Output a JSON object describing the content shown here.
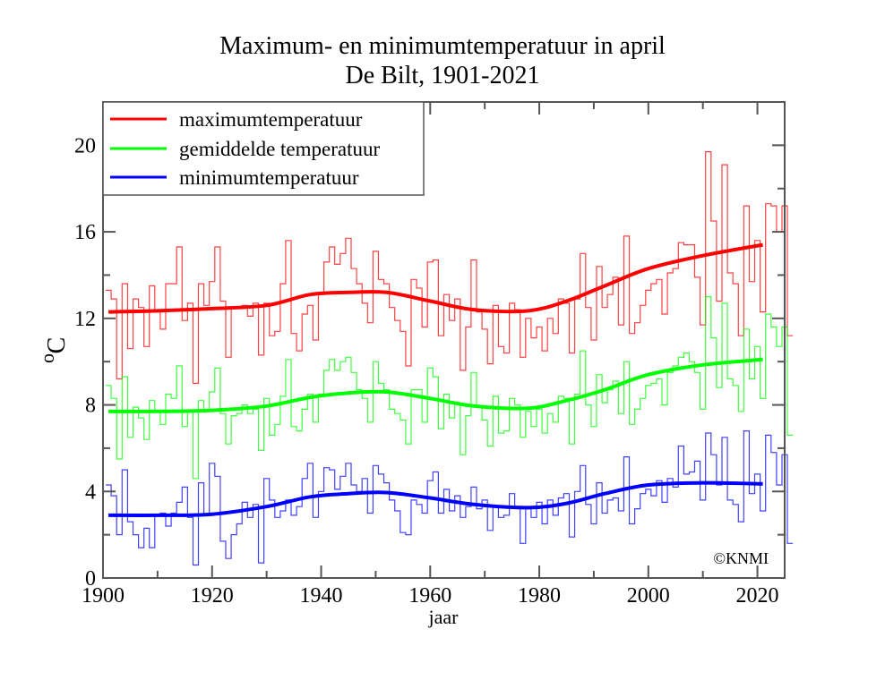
{
  "chart_data": {
    "type": "line",
    "title": "Maximum- en minimumtemperatuur in april",
    "subtitle": "De Bilt, 1901-2021",
    "xlabel": "jaar",
    "ylabel": "°C",
    "ylabel_sup": "o",
    "ylabel_main": "C",
    "xlim": [
      1900,
      2025
    ],
    "ylim": [
      0,
      22
    ],
    "x_ticks": [
      1900,
      1920,
      1940,
      1960,
      1980,
      2000,
      2020
    ],
    "x_minor_step": 10,
    "y_ticks": [
      0,
      4,
      8,
      12,
      16,
      20
    ],
    "y_minor_step": 2,
    "grid": false,
    "legend_position": "top-left",
    "credit": "©KNMI",
    "x_start": 1901,
    "series": [
      {
        "name": "maximumtemperatuur",
        "color": "#ff0000",
        "style": "step",
        "values": [
          13.3,
          12.9,
          9.2,
          13.6,
          10.6,
          12.9,
          12.5,
          10.7,
          13.5,
          12.3,
          11.5,
          13.6,
          13.6,
          15.3,
          11.9,
          12.7,
          9.0,
          13.6,
          12.6,
          13.7,
          15.3,
          12.8,
          10.2,
          12.5,
          12.5,
          12.6,
          12.1,
          12.7,
          10.3,
          12.7,
          11.2,
          11.4,
          13.6,
          15.6,
          11.3,
          10.5,
          12.2,
          12.6,
          11.0,
          13.1,
          14.6,
          15.3,
          14.5,
          15.0,
          15.7,
          14.3,
          13.6,
          12.7,
          11.8,
          15.1,
          13.8,
          13.6,
          12.5,
          11.9,
          11.4,
          9.8,
          13.8,
          13.4,
          11.6,
          14.6,
          14.7,
          11.2,
          13.1,
          11.9,
          12.9,
          9.6,
          11.6,
          14.7,
          12.3,
          11.5,
          9.9,
          12.6,
          10.7,
          10.4,
          12.7,
          12.4,
          10.2,
          12.0,
          11.1,
          11.6,
          10.5,
          12.0,
          11.3,
          12.9,
          12.7,
          10.4,
          12.9,
          15.0,
          12.5,
          11.0,
          14.4,
          12.5,
          13.1,
          13.9,
          11.7,
          15.8,
          11.3,
          11.8,
          12.6,
          13.3,
          13.6,
          13.8,
          12.2,
          14.1,
          14.3,
          15.5,
          15.4,
          15.4,
          13.9,
          11.7,
          19.7,
          16.5,
          12.8,
          19.1,
          14.1,
          13.6,
          11.2,
          17.2,
          13.7,
          15.6,
          12.3,
          17.3,
          17.2,
          16.0,
          17.2,
          11.2
        ],
        "trend": [
          [
            1901,
            12.3
          ],
          [
            1910,
            12.35
          ],
          [
            1920,
            12.45
          ],
          [
            1930,
            12.6
          ],
          [
            1938,
            13.1
          ],
          [
            1945,
            13.2
          ],
          [
            1952,
            13.2
          ],
          [
            1960,
            12.8
          ],
          [
            1968,
            12.4
          ],
          [
            1978,
            12.35
          ],
          [
            1985,
            12.8
          ],
          [
            1992,
            13.5
          ],
          [
            2000,
            14.3
          ],
          [
            2010,
            14.9
          ],
          [
            2021,
            15.4
          ]
        ]
      },
      {
        "name": "gemiddelde temperatuur",
        "color": "#00ff00",
        "style": "step",
        "values": [
          8.9,
          8.3,
          5.5,
          9.3,
          6.5,
          7.9,
          7.4,
          6.4,
          8.2,
          7.7,
          7.1,
          8.5,
          8.3,
          9.8,
          7.0,
          7.7,
          4.6,
          8.2,
          7.7,
          8.6,
          9.7,
          7.6,
          6.2,
          7.5,
          7.6,
          8.0,
          7.6,
          7.8,
          5.9,
          8.3,
          6.6,
          7.1,
          8.4,
          10.1,
          7.0,
          6.8,
          7.8,
          8.5,
          7.2,
          8.5,
          9.6,
          10.1,
          9.6,
          10.0,
          10.2,
          9.5,
          8.7,
          8.3,
          7.2,
          10.0,
          9.0,
          8.7,
          7.8,
          7.6,
          7.3,
          6.2,
          8.7,
          8.7,
          7.2,
          9.7,
          9.3,
          6.9,
          8.5,
          7.4,
          8.1,
          5.7,
          7.5,
          9.5,
          7.9,
          7.3,
          6.1,
          8.4,
          6.7,
          6.8,
          8.3,
          8.0,
          6.5,
          7.7,
          7.0,
          7.8,
          6.7,
          7.6,
          7.2,
          8.4,
          8.3,
          6.2,
          8.5,
          10.5,
          8.0,
          7.0,
          9.4,
          8.1,
          8.7,
          9.1,
          7.6,
          10.0,
          7.1,
          7.8,
          8.3,
          8.9,
          9.0,
          9.2,
          8.0,
          9.5,
          9.8,
          10.2,
          10.4,
          10.0,
          9.5,
          7.8,
          13.0,
          11.1,
          8.8,
          12.7,
          9.2,
          8.9,
          7.7,
          11.5,
          9.2,
          10.7,
          8.3,
          12.2,
          11.6,
          10.7,
          11.6,
          6.6
        ],
        "trend": [
          [
            1901,
            7.7
          ],
          [
            1910,
            7.7
          ],
          [
            1920,
            7.75
          ],
          [
            1930,
            7.95
          ],
          [
            1938,
            8.35
          ],
          [
            1945,
            8.55
          ],
          [
            1952,
            8.6
          ],
          [
            1960,
            8.3
          ],
          [
            1968,
            7.95
          ],
          [
            1978,
            7.85
          ],
          [
            1985,
            8.2
          ],
          [
            1992,
            8.7
          ],
          [
            2000,
            9.4
          ],
          [
            2010,
            9.85
          ],
          [
            2021,
            10.1
          ]
        ]
      },
      {
        "name": "minimumtemperatuur",
        "color": "#0000ff",
        "style": "step",
        "values": [
          4.3,
          3.8,
          2.0,
          5.0,
          2.6,
          2.0,
          1.4,
          2.3,
          1.4,
          2.9,
          3.0,
          2.4,
          3.0,
          3.5,
          4.2,
          2.8,
          0.6,
          4.4,
          2.9,
          5.3,
          4.7,
          1.7,
          0.9,
          2.0,
          2.5,
          3.5,
          2.8,
          3.4,
          0.7,
          4.6,
          3.6,
          2.8,
          3.1,
          3.6,
          2.9,
          3.3,
          4.6,
          5.3,
          2.8,
          4.0,
          5.1,
          5.0,
          4.1,
          4.7,
          5.3,
          4.3,
          4.0,
          4.6,
          3.0,
          5.2,
          4.8,
          4.4,
          3.6,
          3.1,
          2.1,
          2.0,
          3.6,
          3.4,
          3.0,
          4.5,
          4.9,
          3.0,
          4.1,
          3.1,
          3.8,
          2.8,
          3.3,
          4.2,
          3.2,
          3.6,
          2.2,
          3.3,
          2.8,
          2.9,
          3.9,
          3.3,
          1.6,
          3.2,
          2.8,
          3.5,
          2.5,
          3.6,
          2.9,
          3.7,
          3.9,
          1.9,
          4.0,
          5.2,
          3.4,
          2.5,
          4.4,
          3.0,
          3.6,
          3.7,
          3.1,
          5.6,
          2.5,
          3.2,
          3.9,
          4.1,
          3.8,
          4.5,
          3.5,
          4.6,
          4.2,
          6.1,
          4.8,
          4.9,
          5.4,
          3.6,
          6.7,
          5.7,
          4.3,
          6.5,
          3.6,
          3.4,
          2.6,
          6.8,
          3.9,
          4.8,
          3.1,
          6.6,
          5.8,
          4.3,
          5.7,
          1.6
        ],
        "trend": [
          [
            1901,
            2.9
          ],
          [
            1910,
            2.9
          ],
          [
            1920,
            2.95
          ],
          [
            1930,
            3.3
          ],
          [
            1938,
            3.75
          ],
          [
            1945,
            3.9
          ],
          [
            1952,
            3.95
          ],
          [
            1960,
            3.7
          ],
          [
            1968,
            3.4
          ],
          [
            1978,
            3.25
          ],
          [
            1985,
            3.45
          ],
          [
            1992,
            3.9
          ],
          [
            2000,
            4.3
          ],
          [
            2010,
            4.4
          ],
          [
            2021,
            4.35
          ]
        ]
      }
    ]
  }
}
